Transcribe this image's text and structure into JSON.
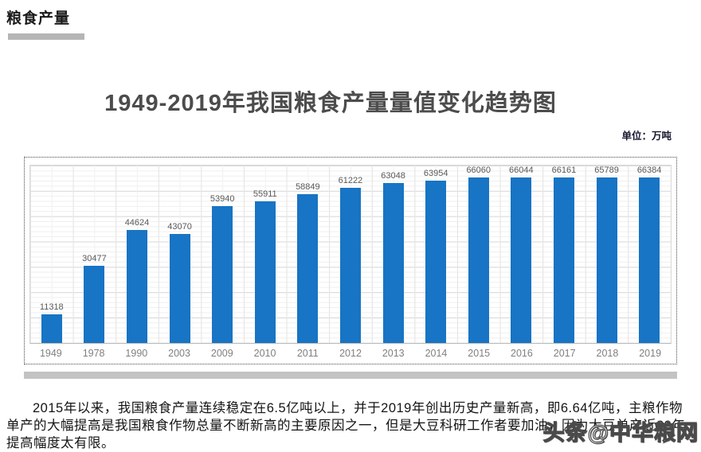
{
  "page": {
    "heading": "粮食产量",
    "unit_label": "单位：万吨",
    "paragraph": "2015年以来，我国粮食产量连续稳定在6.5亿吨以上，并于2019年创出历史产量新高，即6.64亿吨，主粮作物单产的大幅提高是我国粮食作物总量不断新高的主要原因之一，但是大豆科研工作者要加油，因为大豆单产近20年提高幅度太有限。",
    "watermark": "头条@中华粮网"
  },
  "chart_data": {
    "type": "bar",
    "title": "1949-2019年我国粮食产量量值变化趋势图",
    "unit": "万吨",
    "categories": [
      "1949",
      "1978",
      "1990",
      "2003",
      "2009",
      "2010",
      "2011",
      "2012",
      "2013",
      "2014",
      "2015",
      "2016",
      "2017",
      "2018",
      "2019"
    ],
    "values": [
      11318,
      30477,
      44624,
      43070,
      53940,
      55911,
      58849,
      61222,
      63048,
      63954,
      66060,
      66044,
      66161,
      65789,
      66384
    ],
    "xlabel": "",
    "ylabel": "",
    "ylim": [
      0,
      70000
    ],
    "grid": true,
    "legend": "none",
    "bar_color": "#1874c4",
    "value_label_color": "#595959",
    "tick_label_color": "#7f7f7f"
  }
}
